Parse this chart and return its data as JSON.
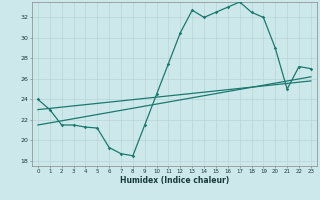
{
  "bg_color": "#cce8ea",
  "grid_color": "#b8d4d6",
  "line_color": "#1a7a6e",
  "xlabel": "Humidex (Indice chaleur)",
  "xlim": [
    -0.5,
    23.5
  ],
  "ylim": [
    17.5,
    33.5
  ],
  "yticks": [
    18,
    20,
    22,
    24,
    26,
    28,
    30,
    32
  ],
  "xticks": [
    0,
    1,
    2,
    3,
    4,
    5,
    6,
    7,
    8,
    9,
    10,
    11,
    12,
    13,
    14,
    15,
    16,
    17,
    18,
    19,
    20,
    21,
    22,
    23
  ],
  "main_x": [
    0,
    1,
    2,
    3,
    4,
    5,
    6,
    7,
    8,
    9,
    10,
    11,
    12,
    13,
    14,
    15,
    16,
    17,
    18,
    19,
    20,
    21,
    22,
    23
  ],
  "main_y": [
    24,
    23,
    21.5,
    21.5,
    21.3,
    21.2,
    19.3,
    18.7,
    18.5,
    21.5,
    24.5,
    27.5,
    30.5,
    32.7,
    32.0,
    32.5,
    33.0,
    33.5,
    32.5,
    32.0,
    29.0,
    25.0,
    27.2,
    27.0
  ],
  "trend1_x": [
    0,
    23
  ],
  "trend1_y": [
    23.0,
    25.8
  ],
  "trend2_x": [
    0,
    23
  ],
  "trend2_y": [
    21.5,
    26.2
  ]
}
